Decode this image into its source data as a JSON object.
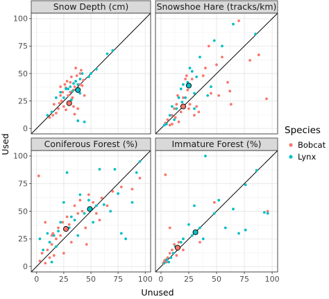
{
  "chart_data": {
    "type": "scatter",
    "xlabel": "Unused",
    "ylabel": "Used",
    "xlim": [
      0,
      100
    ],
    "ylim": [
      0,
      100
    ],
    "xticks": [
      0,
      25,
      50,
      75,
      100
    ],
    "yticks": [
      0,
      25,
      50,
      75,
      100
    ],
    "grid": true,
    "reference_line": "y = x",
    "legend": {
      "title": "Species",
      "placement": "right",
      "entries": [
        {
          "name": "Bobcat",
          "color": "#F8766D"
        },
        {
          "name": "Lynx",
          "color": "#00BFC4"
        }
      ]
    },
    "panels": [
      {
        "title": "Snow Depth (cm)",
        "series": [
          {
            "name": "Bobcat",
            "color": "#F8766D",
            "points": [
              [
                12,
                10
              ],
              [
                15,
                12
              ],
              [
                16,
                22
              ],
              [
                18,
                14
              ],
              [
                20,
                18
              ],
              [
                21,
                23
              ],
              [
                22,
                30
              ],
              [
                23,
                25
              ],
              [
                24,
                33
              ],
              [
                25,
                20
              ],
              [
                26,
                40
              ],
              [
                27,
                37
              ],
              [
                28,
                43
              ],
              [
                29,
                30
              ],
              [
                30,
                24
              ],
              [
                31,
                42
              ],
              [
                32,
                47
              ],
              [
                33,
                28
              ],
              [
                34,
                35
              ],
              [
                35,
                38
              ],
              [
                36,
                55
              ],
              [
                37,
                48
              ],
              [
                38,
                18
              ],
              [
                39,
                36
              ],
              [
                40,
                50
              ],
              [
                41,
                53
              ],
              [
                42,
                39
              ],
              [
                43,
                44
              ],
              [
                44,
                30
              ],
              [
                22,
                38
              ],
              [
                27,
                17
              ],
              [
                31,
                33
              ],
              [
                34,
                20
              ],
              [
                35,
                13
              ],
              [
                40,
                40
              ]
            ],
            "mean": [
              30,
              23
            ]
          },
          {
            "name": "Lynx",
            "color": "#00BFC4",
            "points": [
              [
                10,
                12
              ],
              [
                14,
                15
              ],
              [
                18,
                28
              ],
              [
                22,
                33
              ],
              [
                25,
                28
              ],
              [
                27,
                36
              ],
              [
                29,
                36
              ],
              [
                31,
                38
              ],
              [
                33,
                34
              ],
              [
                34,
                41
              ],
              [
                36,
                43
              ],
              [
                38,
                40
              ],
              [
                40,
                45
              ],
              [
                42,
                50
              ],
              [
                48,
                47
              ],
              [
                50,
                50
              ],
              [
                55,
                54
              ],
              [
                65,
                68
              ],
              [
                70,
                71
              ],
              [
                38,
                7
              ],
              [
                44,
                6
              ],
              [
                40,
                32
              ],
              [
                32,
                26
              ]
            ],
            "mean": [
              38,
              35
            ]
          }
        ]
      },
      {
        "title": "Snowshoe Hare (tracks/km)",
        "series": [
          {
            "name": "Bobcat",
            "color": "#F8766D",
            "points": [
              [
                4,
                5
              ],
              [
                6,
                8
              ],
              [
                8,
                3
              ],
              [
                10,
                12
              ],
              [
                12,
                18
              ],
              [
                13,
                10
              ],
              [
                14,
                22
              ],
              [
                15,
                30
              ],
              [
                16,
                6
              ],
              [
                18,
                15
              ],
              [
                20,
                28
              ],
              [
                22,
                45
              ],
              [
                23,
                48
              ],
              [
                24,
                35
              ],
              [
                25,
                18
              ],
              [
                26,
                22
              ],
              [
                28,
                45
              ],
              [
                30,
                12
              ],
              [
                32,
                20
              ],
              [
                34,
                15
              ],
              [
                40,
                55
              ],
              [
                43,
                75
              ],
              [
                45,
                32
              ],
              [
                50,
                58
              ],
              [
                52,
                30
              ],
              [
                55,
                65
              ],
              [
                60,
                42
              ],
              [
                62,
                34
              ],
              [
                63,
                22
              ],
              [
                70,
                98
              ],
              [
                80,
                62
              ],
              [
                88,
                67
              ],
              [
                95,
                27
              ],
              [
                10,
                4
              ],
              [
                38,
                48
              ]
            ],
            "mean": [
              20,
              20
            ]
          },
          {
            "name": "Lynx",
            "color": "#00BFC4",
            "points": [
              [
                3,
                3
              ],
              [
                5,
                4
              ],
              [
                8,
                12
              ],
              [
                10,
                20
              ],
              [
                14,
                18
              ],
              [
                16,
                28
              ],
              [
                18,
                36
              ],
              [
                19,
                24
              ],
              [
                20,
                40
              ],
              [
                22,
                28
              ],
              [
                24,
                42
              ],
              [
                26,
                55
              ],
              [
                28,
                52
              ],
              [
                30,
                32
              ],
              [
                32,
                47
              ],
              [
                35,
                65
              ],
              [
                42,
                30
              ],
              [
                45,
                38
              ],
              [
                48,
                80
              ],
              [
                55,
                75
              ],
              [
                65,
                95
              ],
              [
                85,
                86
              ],
              [
                30,
                18
              ],
              [
                12,
                8
              ]
            ],
            "mean": [
              25,
              39
            ]
          }
        ]
      },
      {
        "title": "Coniferous Forest (%)",
        "series": [
          {
            "name": "Bobcat",
            "color": "#F8766D",
            "points": [
              [
                2,
                82
              ],
              [
                3,
                5
              ],
              [
                5,
                12
              ],
              [
                8,
                3
              ],
              [
                10,
                15
              ],
              [
                12,
                8
              ],
              [
                14,
                20
              ],
              [
                15,
                30
              ],
              [
                16,
                10
              ],
              [
                18,
                25
              ],
              [
                20,
                35
              ],
              [
                22,
                28
              ],
              [
                24,
                40
              ],
              [
                25,
                12
              ],
              [
                28,
                45
              ],
              [
                30,
                38
              ],
              [
                32,
                22
              ],
              [
                35,
                55
              ],
              [
                38,
                48
              ],
              [
                40,
                60
              ],
              [
                42,
                50
              ],
              [
                45,
                35
              ],
              [
                48,
                65
              ],
              [
                52,
                58
              ],
              [
                55,
                48
              ],
              [
                58,
                42
              ],
              [
                60,
                62
              ],
              [
                65,
                55
              ],
              [
                70,
                68
              ],
              [
                78,
                72
              ],
              [
                88,
                70
              ],
              [
                95,
                80
              ],
              [
                8,
                40
              ],
              [
                14,
                28
              ],
              [
                46,
                20
              ]
            ],
            "mean": [
              27,
              34
            ]
          },
          {
            "name": "Lynx",
            "color": "#00BFC4",
            "points": [
              [
                3,
                25
              ],
              [
                6,
                15
              ],
              [
                10,
                30
              ],
              [
                12,
                22
              ],
              [
                14,
                4
              ],
              [
                16,
                28
              ],
              [
                18,
                18
              ],
              [
                20,
                32
              ],
              [
                22,
                40
              ],
              [
                25,
                58
              ],
              [
                28,
                85
              ],
              [
                30,
                35
              ],
              [
                32,
                45
              ],
              [
                35,
                42
              ],
              [
                38,
                28
              ],
              [
                40,
                65
              ],
              [
                44,
                48
              ],
              [
                48,
                60
              ],
              [
                52,
                40
              ],
              [
                55,
                55
              ],
              [
                58,
                88
              ],
              [
                62,
                56
              ],
              [
                68,
                50
              ],
              [
                72,
                88
              ],
              [
                78,
                30
              ],
              [
                82,
                25
              ],
              [
                92,
                85
              ],
              [
                95,
                95
              ],
              [
                75,
                66
              ],
              [
                88,
                58
              ]
            ],
            "mean": [
              49,
              52
            ]
          }
        ]
      },
      {
        "title": "Immature Forest (%)",
        "series": [
          {
            "name": "Bobcat",
            "color": "#F8766D",
            "points": [
              [
                2,
                3
              ],
              [
                3,
                5
              ],
              [
                4,
                6
              ],
              [
                5,
                4
              ],
              [
                6,
                8
              ],
              [
                8,
                12
              ],
              [
                10,
                15
              ],
              [
                12,
                20
              ],
              [
                14,
                10
              ],
              [
                16,
                22
              ],
              [
                4,
                83
              ],
              [
                8,
                35
              ],
              [
                20,
                15
              ],
              [
                35,
                22
              ],
              [
                48,
                58
              ],
              [
                96,
                50
              ]
            ],
            "mean": [
              15,
              17
            ]
          },
          {
            "name": "Lynx",
            "color": "#00BFC4",
            "points": [
              [
                3,
                3
              ],
              [
                5,
                6
              ],
              [
                7,
                4
              ],
              [
                9,
                8
              ],
              [
                11,
                12
              ],
              [
                13,
                18
              ],
              [
                15,
                16
              ],
              [
                18,
                22
              ],
              [
                20,
                25
              ],
              [
                25,
                38
              ],
              [
                28,
                28
              ],
              [
                32,
                30
              ],
              [
                35,
                35
              ],
              [
                40,
                100
              ],
              [
                48,
                48
              ],
              [
                52,
                60
              ],
              [
                58,
                35
              ],
              [
                65,
                52
              ],
              [
                70,
                30
              ],
              [
                76,
                33
              ],
              [
                76,
                74
              ],
              [
                86,
                87
              ],
              [
                93,
                49
              ],
              [
                96,
                48
              ],
              [
                30,
                55
              ],
              [
                38,
                25
              ]
            ],
            "mean": [
              31,
              31
            ]
          }
        ]
      }
    ]
  }
}
